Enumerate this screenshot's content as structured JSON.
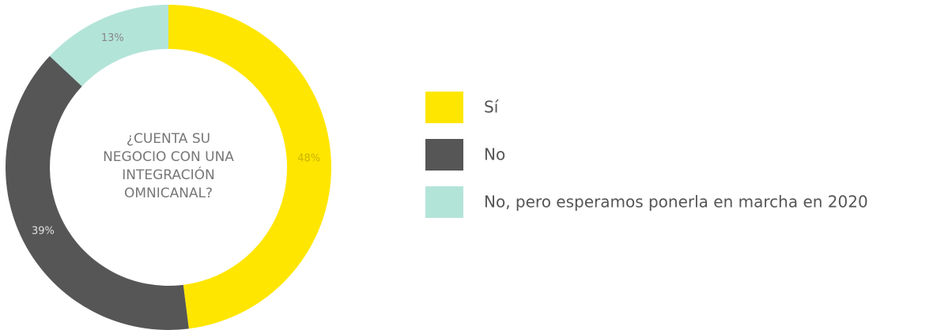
{
  "chart_data": {
    "type": "pie",
    "title": "¿CUENTA SU NEGOCIO CON UNA INTEGRACIÓN OMNICANAL?",
    "categories": [
      "Sí",
      "No",
      "No, pero esperamos ponerla en marcha en 2020"
    ],
    "values": [
      48,
      39,
      13
    ],
    "value_labels": [
      "48%",
      "39%",
      "13%"
    ],
    "colors": [
      "#ffe600",
      "#565656",
      "#b3e4d8"
    ]
  }
}
